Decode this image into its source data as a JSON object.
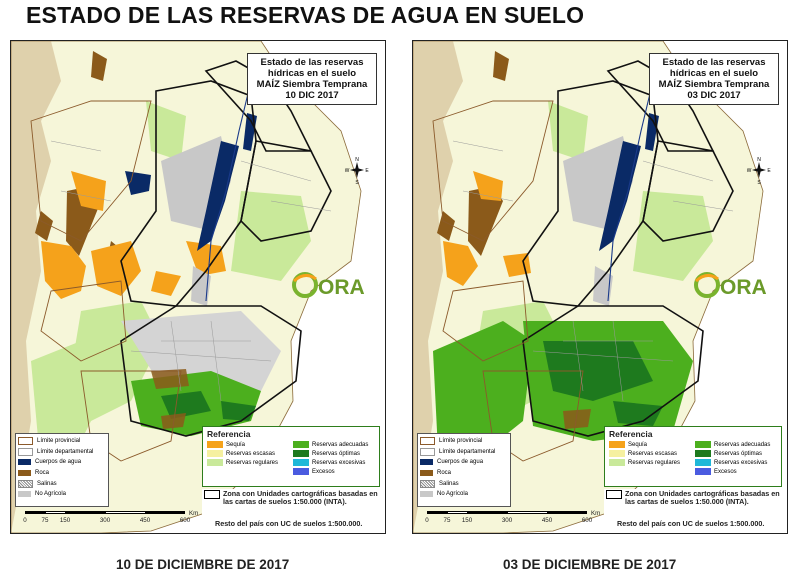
{
  "page": {
    "main_title": "ESTADO DE LAS RESERVAS DE AGUA EN SUELO"
  },
  "maps": [
    {
      "title_lines": [
        "Estado de las reservas",
        "hídricas en el suelo",
        "MAÍZ Siembra Temprana",
        "10 DIC 2017"
      ],
      "caption": "10 DE DICIEMBRE DE 2017"
    },
    {
      "title_lines": [
        "Estado de las reservas",
        "hídricas en el suelo",
        "MAÍZ Siembra Temprana",
        "03 DIC 2017"
      ],
      "caption": "03 DE DICIEMBRE DE 2017"
    }
  ],
  "logo_text": "ORA",
  "compass_labels": {
    "n": "N",
    "s": "S",
    "e": "E",
    "w": "W"
  },
  "legend_left": [
    {
      "label": "Límite provincial",
      "color": "#ffffff",
      "border": "#8b5a2b"
    },
    {
      "label": "Límite departamental",
      "color": "#ffffff",
      "border": "#999999"
    },
    {
      "label": "Cuerpos de agua",
      "color": "#0a2a66"
    },
    {
      "label": "Roca",
      "color": "#8b5a1a"
    },
    {
      "label": "Salinas",
      "color": "#f2f2f2",
      "border": "#888888"
    },
    {
      "label": "No Agrícola",
      "color": "#c8c8c8"
    }
  ],
  "reference": {
    "title": "Referencia",
    "items": [
      {
        "label": "Sequía",
        "color": "#f5a21b"
      },
      {
        "label": "Reservas adecuadas",
        "color": "#4caf1e"
      },
      {
        "label": "Reservas escasas",
        "color": "#f5f0a0"
      },
      {
        "label": "Reservas óptimas",
        "color": "#1e7a1e"
      },
      {
        "label": "Reservas regulares",
        "color": "#c9e99a"
      },
      {
        "label": "Reservas excesivas",
        "color": "#1fb8d8"
      },
      {
        "label": "",
        "color": ""
      },
      {
        "label": "Excesos",
        "color": "#4a5be0"
      }
    ],
    "zone_text": "Zona con Unidades cartográficas basadas en las cartas de suelos 1:50.000 (INTA).",
    "rest_text": "Resto del país con UC de suelos 1:500.000."
  },
  "scale": {
    "ticks": [
      "0",
      "75",
      "150",
      "300",
      "450",
      "600"
    ],
    "unit": "Km"
  }
}
